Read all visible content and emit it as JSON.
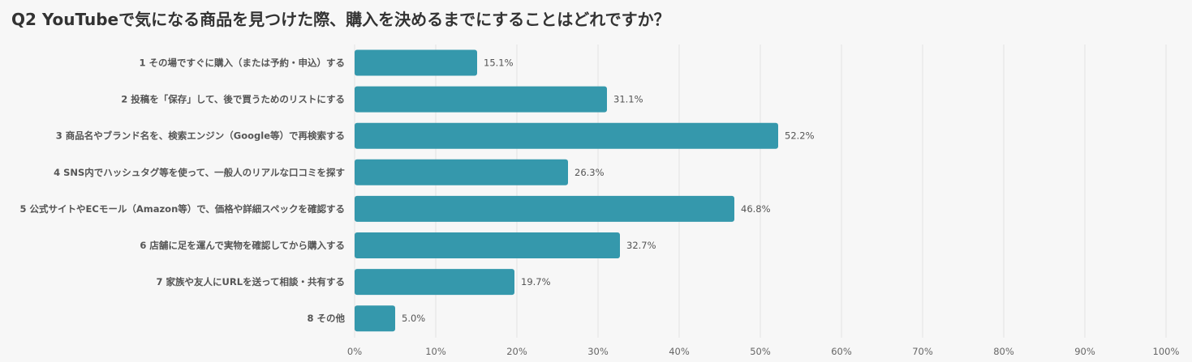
{
  "title": "Q2 YouTubeで気になる商品を見つけた際、購入を決めるまでにすることはどれですか？",
  "colors": {
    "bar": "#3598ac",
    "grid": "#e3e3e3",
    "background": "#f7f7f7"
  },
  "chart_data": {
    "type": "bar",
    "orientation": "horizontal",
    "categories": [
      "1 その場ですぐに購入（または予約・申込）する",
      "2 投稿を「保存」して、後で買うためのリストにする",
      "3 商品名やブランド名を、検索エンジン（Google等）で再検索する",
      "4 SNS内でハッシュタグ等を使って、一般人のリアルな口コミを探す",
      "5 公式サイトやECモール（Amazon等）で、価格や詳細スペックを確認する",
      "6 店舗に足を運んで実物を確認してから購入する",
      "7 家族や友人にURLを送って相談・共有する",
      "8 その他"
    ],
    "values": [
      15.1,
      31.1,
      52.2,
      26.3,
      46.8,
      32.7,
      19.7,
      5.0
    ],
    "value_labels": [
      "15.1%",
      "31.1%",
      "52.2%",
      "26.3%",
      "46.8%",
      "32.7%",
      "19.7%",
      "5.0%"
    ],
    "xlim": [
      0,
      100
    ],
    "xticks": [
      "0%",
      "10%",
      "20%",
      "30%",
      "40%",
      "50%",
      "60%",
      "70%",
      "80%",
      "90%",
      "100%"
    ],
    "grid": true,
    "legend": "none"
  }
}
